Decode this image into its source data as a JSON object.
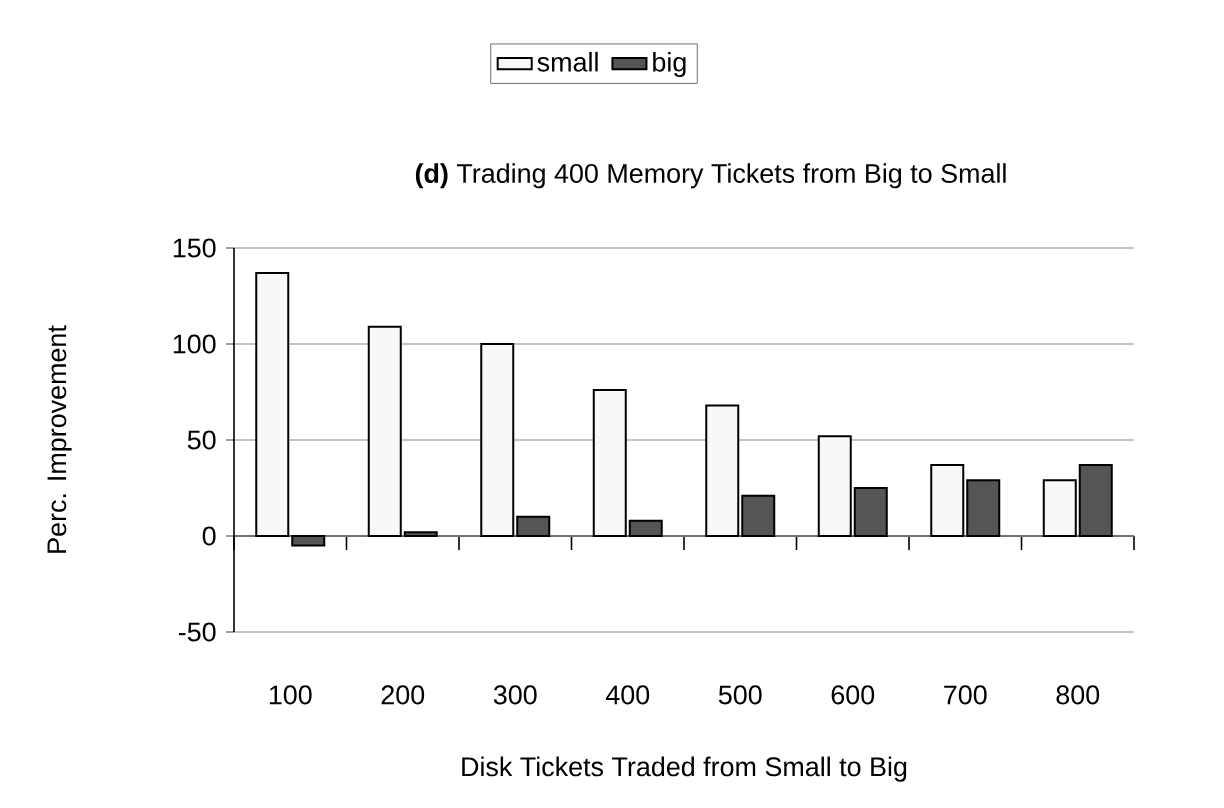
{
  "chart_data": {
    "type": "bar",
    "title": "**(d)** Trading 400 Memory Tickets from Big to Small",
    "xlabel": "Disk Tickets Traded from Small to Big",
    "ylabel": "Perc. Improvement",
    "categories": [
      "100",
      "200",
      "300",
      "400",
      "500",
      "600",
      "700",
      "800"
    ],
    "series": [
      {
        "name": "small",
        "color": "#f8f8f8",
        "values": [
          137,
          109,
          100,
          76,
          68,
          52,
          37,
          29
        ]
      },
      {
        "name": "big",
        "color": "#555555",
        "values": [
          -5,
          2,
          10,
          8,
          21,
          25,
          29,
          37
        ]
      }
    ],
    "ylim": [
      -50,
      150
    ],
    "yticks": [
      -50,
      0,
      50,
      100,
      150
    ],
    "grid": "y",
    "legend": "top"
  }
}
